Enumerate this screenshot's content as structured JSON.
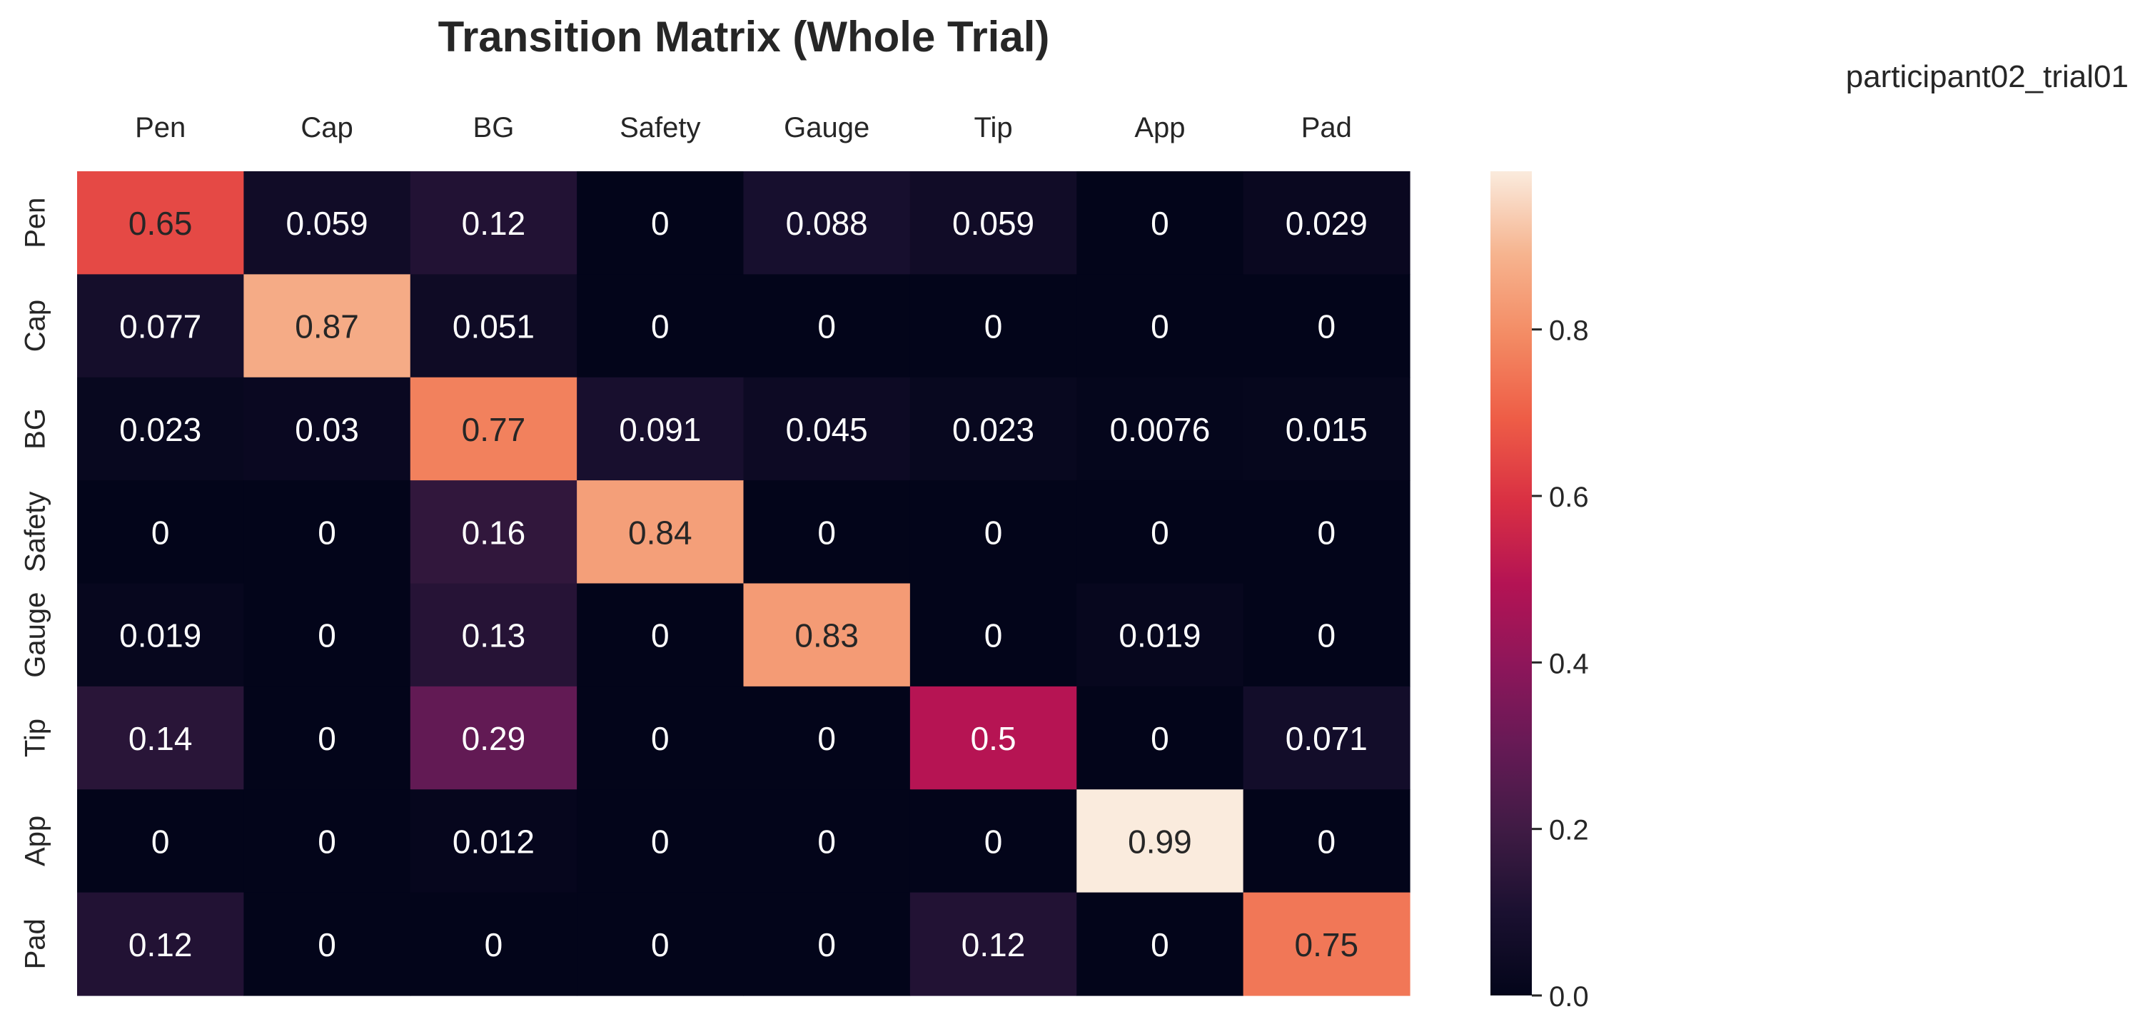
{
  "chart_data": {
    "type": "heatmap",
    "title": "Transition Matrix (Whole Trial)",
    "corner_label": "participant02_trial01",
    "columns": [
      "Pen",
      "Cap",
      "BG",
      "Safety",
      "Gauge",
      "Tip",
      "App",
      "Pad"
    ],
    "rows": [
      "Pen",
      "Cap",
      "BG",
      "Safety",
      "Gauge",
      "Tip",
      "App",
      "Pad"
    ],
    "values": [
      [
        0.65,
        0.059,
        0.12,
        0,
        0.088,
        0.059,
        0,
        0.029
      ],
      [
        0.077,
        0.87,
        0.051,
        0,
        0,
        0,
        0,
        0
      ],
      [
        0.023,
        0.03,
        0.77,
        0.091,
        0.045,
        0.023,
        0.0076,
        0.015
      ],
      [
        0,
        0,
        0.16,
        0.84,
        0,
        0,
        0,
        0
      ],
      [
        0.019,
        0,
        0.13,
        0,
        0.83,
        0,
        0.019,
        0
      ],
      [
        0.14,
        0,
        0.29,
        0,
        0,
        0.5,
        0,
        0.071
      ],
      [
        0,
        0,
        0.012,
        0,
        0,
        0,
        0.99,
        0
      ],
      [
        0.12,
        0,
        0,
        0,
        0,
        0.12,
        0,
        0.75
      ]
    ],
    "colorbar": {
      "colormap": "rocket",
      "range": [
        0,
        0.99
      ],
      "ticks": [
        0.0,
        0.2,
        0.4,
        0.6,
        0.8
      ],
      "tick_labels": [
        "0.0",
        "0.2",
        "0.4",
        "0.6",
        "0.8"
      ]
    },
    "x_axis_position": "top",
    "grid": false,
    "annotations": "cell values shown"
  }
}
